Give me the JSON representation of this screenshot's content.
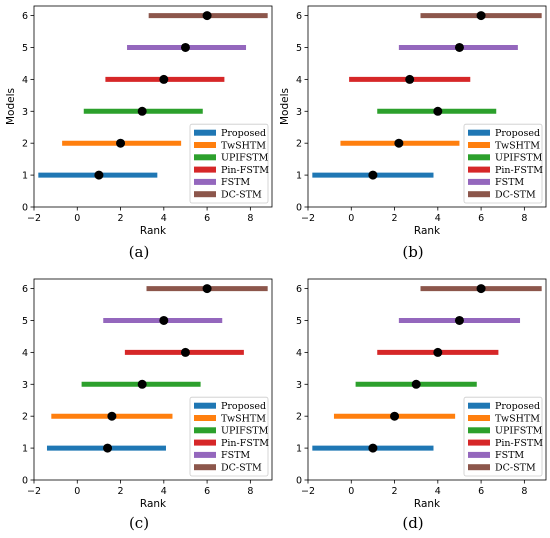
{
  "colors": {
    "Proposed": "#1f77b4",
    "TwSHTM": "#ff7f0e",
    "UPIFSTM": "#2ca02c",
    "Pin-FSTM": "#d62728",
    "FSTM": "#9467bd",
    "DC-STM": "#8c564b"
  },
  "chart_data": [
    {
      "type": "interval",
      "caption": "(a)",
      "xlabel": "Rank",
      "ylabel": "Models",
      "xlim": [
        -2,
        9
      ],
      "ylim": [
        0,
        6.3
      ],
      "xticks": [
        -2,
        0,
        2,
        4,
        6,
        8
      ],
      "yticks": [
        0,
        1,
        2,
        3,
        4,
        5,
        6
      ],
      "legend_position": "lower-right",
      "series": [
        {
          "name": "Proposed",
          "y": 1,
          "center": 1.0,
          "low": -1.8,
          "high": 3.7
        },
        {
          "name": "TwSHTM",
          "y": 2,
          "center": 2.0,
          "low": -0.7,
          "high": 4.8
        },
        {
          "name": "UPIFSTM",
          "y": 3,
          "center": 3.0,
          "low": 0.3,
          "high": 5.8
        },
        {
          "name": "Pin-FSTM",
          "y": 4,
          "center": 4.0,
          "low": 1.3,
          "high": 6.8
        },
        {
          "name": "FSTM",
          "y": 5,
          "center": 5.0,
          "low": 2.3,
          "high": 7.8
        },
        {
          "name": "DC-STM",
          "y": 6,
          "center": 6.0,
          "low": 3.3,
          "high": 8.8
        }
      ]
    },
    {
      "type": "interval",
      "caption": "(b)",
      "xlabel": "Rank",
      "ylabel": "Models",
      "xlim": [
        -2,
        9
      ],
      "ylim": [
        0,
        6.3
      ],
      "xticks": [
        -2,
        0,
        2,
        4,
        6,
        8
      ],
      "yticks": [
        0,
        1,
        2,
        3,
        4,
        5,
        6
      ],
      "legend_position": "lower-right",
      "series": [
        {
          "name": "Proposed",
          "y": 1,
          "center": 1.0,
          "low": -1.8,
          "high": 3.8
        },
        {
          "name": "TwSHTM",
          "y": 2,
          "center": 2.2,
          "low": -0.5,
          "high": 5.0
        },
        {
          "name": "UPIFSTM",
          "y": 3,
          "center": 4.0,
          "low": 1.2,
          "high": 6.7
        },
        {
          "name": "Pin-FSTM",
          "y": 4,
          "center": 2.7,
          "low": -0.1,
          "high": 5.5
        },
        {
          "name": "FSTM",
          "y": 5,
          "center": 5.0,
          "low": 2.2,
          "high": 7.7
        },
        {
          "name": "DC-STM",
          "y": 6,
          "center": 6.0,
          "low": 3.2,
          "high": 8.8
        }
      ]
    },
    {
      "type": "interval",
      "caption": "(c)",
      "xlabel": "Rank",
      "ylabel": "",
      "xlim": [
        -2,
        9
      ],
      "ylim": [
        0,
        6.3
      ],
      "xticks": [
        -2,
        0,
        2,
        4,
        6,
        8
      ],
      "yticks": [
        0,
        1,
        2,
        3,
        4,
        5,
        6
      ],
      "legend_position": "lower-right",
      "series": [
        {
          "name": "Proposed",
          "y": 1,
          "center": 1.4,
          "low": -1.4,
          "high": 4.1
        },
        {
          "name": "TwSHTM",
          "y": 2,
          "center": 1.6,
          "low": -1.2,
          "high": 4.4
        },
        {
          "name": "UPIFSTM",
          "y": 3,
          "center": 3.0,
          "low": 0.2,
          "high": 5.7
        },
        {
          "name": "Pin-FSTM",
          "y": 4,
          "center": 5.0,
          "low": 2.2,
          "high": 7.7
        },
        {
          "name": "FSTM",
          "y": 5,
          "center": 4.0,
          "low": 1.2,
          "high": 6.7
        },
        {
          "name": "DC-STM",
          "y": 6,
          "center": 6.0,
          "low": 3.2,
          "high": 8.8
        }
      ]
    },
    {
      "type": "interval",
      "caption": "(d)",
      "xlabel": "Rank",
      "ylabel": "",
      "xlim": [
        -2,
        9
      ],
      "ylim": [
        0,
        6.3
      ],
      "xticks": [
        -2,
        0,
        2,
        4,
        6,
        8
      ],
      "yticks": [
        0,
        1,
        2,
        3,
        4,
        5,
        6
      ],
      "legend_position": "lower-right",
      "series": [
        {
          "name": "Proposed",
          "y": 1,
          "center": 1.0,
          "low": -1.8,
          "high": 3.8
        },
        {
          "name": "TwSHTM",
          "y": 2,
          "center": 2.0,
          "low": -0.8,
          "high": 4.8
        },
        {
          "name": "UPIFSTM",
          "y": 3,
          "center": 3.0,
          "low": 0.2,
          "high": 5.8
        },
        {
          "name": "Pin-FSTM",
          "y": 4,
          "center": 4.0,
          "low": 1.2,
          "high": 6.8
        },
        {
          "name": "FSTM",
          "y": 5,
          "center": 5.0,
          "low": 2.2,
          "high": 7.8
        },
        {
          "name": "DC-STM",
          "y": 6,
          "center": 6.0,
          "low": 3.2,
          "high": 8.8
        }
      ]
    }
  ]
}
